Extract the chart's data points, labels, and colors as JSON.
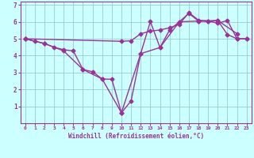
{
  "line1_x": [
    0,
    1,
    2,
    3,
    4,
    5,
    6,
    7,
    8,
    9,
    10,
    11,
    12,
    13,
    14,
    15,
    16,
    17,
    18,
    19,
    20,
    21,
    22,
    23
  ],
  "line1_y": [
    5.0,
    4.85,
    4.72,
    4.5,
    4.35,
    4.28,
    3.18,
    3.05,
    2.62,
    2.6,
    0.62,
    1.32,
    4.12,
    6.02,
    4.48,
    5.52,
    6.0,
    6.5,
    6.05,
    6.02,
    6.08,
    5.25,
    5.0,
    5.0
  ],
  "line2_x": [
    0,
    2,
    4,
    6,
    8,
    10,
    12,
    14,
    16,
    18,
    20,
    22
  ],
  "line2_y": [
    5.0,
    4.72,
    4.28,
    3.18,
    2.62,
    0.62,
    4.12,
    4.48,
    6.0,
    6.05,
    6.08,
    5.3
  ],
  "line3_x": [
    0,
    10,
    11,
    12,
    13,
    14,
    15,
    16,
    17,
    18,
    19,
    20,
    21,
    22,
    23
  ],
  "line3_y": [
    5.0,
    4.85,
    4.88,
    5.3,
    5.45,
    5.52,
    5.65,
    5.85,
    6.55,
    6.1,
    6.05,
    5.92,
    6.08,
    5.0,
    5.0
  ],
  "color": "#993399",
  "bg_color": "#ccffff",
  "grid_color": "#99cccc",
  "xlabel": "Windchill (Refroidissement éolien,°C)",
  "xlim": [
    -0.5,
    23.5
  ],
  "ylim": [
    0,
    7.2
  ],
  "xticks": [
    0,
    1,
    2,
    3,
    4,
    5,
    6,
    7,
    8,
    9,
    10,
    11,
    12,
    13,
    14,
    15,
    16,
    17,
    18,
    19,
    20,
    21,
    22,
    23
  ],
  "yticks": [
    1,
    2,
    3,
    4,
    5,
    6,
    7
  ],
  "marker": "D",
  "markersize": 2.5,
  "linewidth": 1.0
}
